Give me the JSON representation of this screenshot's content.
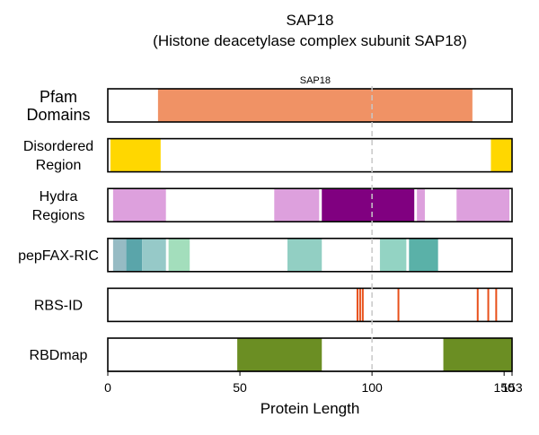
{
  "chart_data": {
    "type": "bar",
    "title": "SAP18",
    "subtitle": "(Histone deacetylase complex subunit SAP18)",
    "xlabel": "Protein Length",
    "xlim": [
      0,
      153
    ],
    "x_ticks": [
      0,
      50,
      100,
      150,
      153
    ],
    "x_tick_labels": [
      "0",
      "50",
      "100",
      "150",
      "153"
    ],
    "reference_line_x": 100,
    "tracks": [
      {
        "label_lines": [
          "Pfam",
          "Domains"
        ],
        "segments": [
          {
            "start": 19,
            "end": 138,
            "color": "#F09265",
            "label": "SAP18"
          }
        ],
        "lines": []
      },
      {
        "label_lines": [
          "Disordered",
          "Region"
        ],
        "segments": [
          {
            "start": 1,
            "end": 20,
            "color": "#FFD700"
          },
          {
            "start": 145,
            "end": 153,
            "color": "#FFD700"
          }
        ],
        "lines": []
      },
      {
        "label_lines": [
          "Hydra",
          "Regions"
        ],
        "segments": [
          {
            "start": 2,
            "end": 22,
            "color": "#DDA0DD"
          },
          {
            "start": 63,
            "end": 80,
            "color": "#DDA0DD"
          },
          {
            "start": 81,
            "end": 116,
            "color": "#800080"
          },
          {
            "start": 117,
            "end": 120,
            "color": "#DDA0DD"
          },
          {
            "start": 132,
            "end": 152,
            "color": "#DDA0DD"
          }
        ],
        "lines": []
      },
      {
        "label_lines": [
          "pepFAX-RIC"
        ],
        "segments": [
          {
            "start": 2,
            "end": 7,
            "color": "#96BBC4"
          },
          {
            "start": 7,
            "end": 13,
            "color": "#5AA5AA"
          },
          {
            "start": 13,
            "end": 22,
            "color": "#96C9C8"
          },
          {
            "start": 23,
            "end": 31,
            "color": "#A3DEBC"
          },
          {
            "start": 68,
            "end": 81,
            "color": "#92CFC3"
          },
          {
            "start": 103,
            "end": 113,
            "color": "#93D3C3"
          },
          {
            "start": 114,
            "end": 125,
            "color": "#5AB1A8"
          }
        ],
        "lines": []
      },
      {
        "label_lines": [
          "RBS-ID"
        ],
        "segments": [],
        "lines": [
          {
            "x": 94.5,
            "color": "#E8501A"
          },
          {
            "x": 95.5,
            "color": "#E8501A"
          },
          {
            "x": 96.5,
            "color": "#E8501A"
          },
          {
            "x": 110,
            "color": "#E8501A"
          },
          {
            "x": 140,
            "color": "#E8501A"
          },
          {
            "x": 144,
            "color": "#E8501A"
          },
          {
            "x": 147,
            "color": "#E8501A"
          }
        ]
      },
      {
        "label_lines": [
          "RBDmap"
        ],
        "segments": [
          {
            "start": 49,
            "end": 81,
            "color": "#6B8E23"
          },
          {
            "start": 127,
            "end": 153,
            "color": "#6B8E23"
          }
        ],
        "lines": []
      }
    ]
  }
}
